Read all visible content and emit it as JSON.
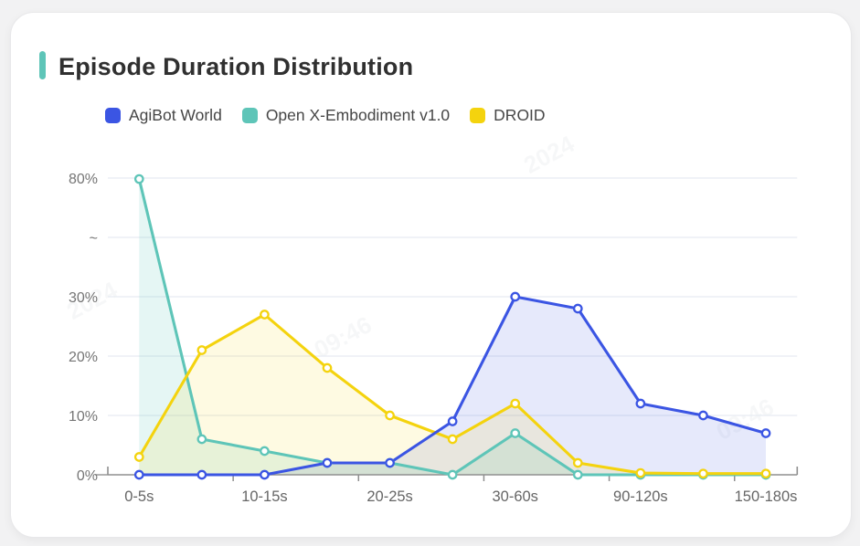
{
  "card": {
    "title": "Episode Duration Distribution",
    "accent_color": "#5ec5b8"
  },
  "watermark": {
    "fragments": [
      "2024",
      "09:46"
    ]
  },
  "chart_data": {
    "type": "line",
    "title": "Episode Duration Distribution",
    "categories": [
      "0-5s",
      "",
      "10-15s",
      "",
      "20-25s",
      "",
      "30-60s",
      "",
      "90-120s",
      "",
      "150-180s"
    ],
    "x_tick_labels_visible": [
      "0-5s",
      "10-15s",
      "20-25s",
      "30-60s",
      "90-120s",
      "150-180s"
    ],
    "xlabel": "",
    "ylabel": "",
    "y_axis": {
      "unit": "%",
      "tick_labels": [
        "0%",
        "10%",
        "20%",
        "30%",
        "~",
        "80%"
      ],
      "tick_values": [
        0,
        10,
        20,
        30,
        null,
        80
      ],
      "has_break": true,
      "break_after_value": 30,
      "break_top_value": 80
    },
    "grid": true,
    "legend_position": "top-left",
    "series": [
      {
        "name": "AgiBot World",
        "color": "#3b55e3",
        "fill_opacity": 0.13,
        "values": [
          0,
          0,
          0,
          2,
          2,
          9,
          30,
          28,
          12,
          10,
          7
        ]
      },
      {
        "name": "Open X-Embodiment v1.0",
        "color": "#5ec5b8",
        "fill_opacity": 0.16,
        "values": [
          79.6,
          6,
          4,
          2,
          2,
          0,
          7,
          0,
          0,
          0,
          0
        ]
      },
      {
        "name": "DROID",
        "color": "#f4d30e",
        "fill_opacity": 0.12,
        "values": [
          3,
          21,
          27,
          18,
          10,
          6,
          12,
          2,
          0.3,
          0.2,
          0.2
        ]
      }
    ]
  }
}
